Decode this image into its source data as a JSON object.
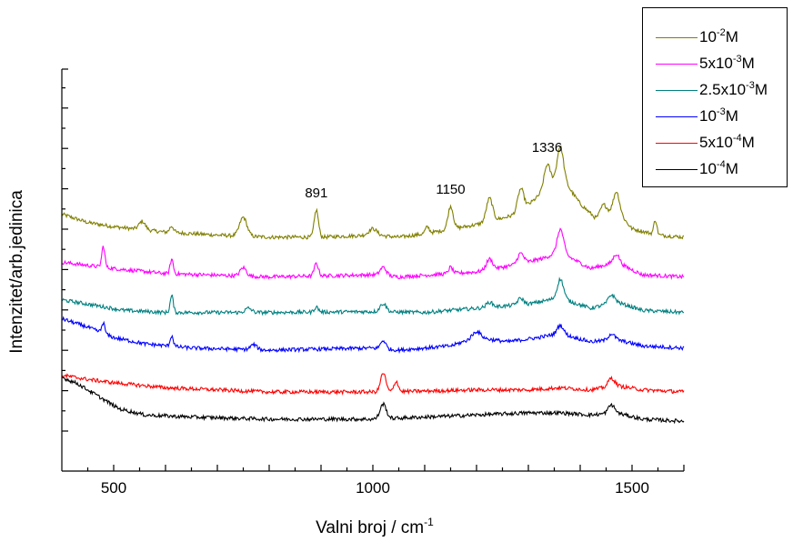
{
  "chart_data": {
    "type": "line",
    "title": "",
    "xlabel": "Valni broj / cm",
    "xlabel_sup": "-1",
    "ylabel": "Intenzitet/arb.jedinica",
    "xlim": [
      400,
      1600
    ],
    "xticks": [
      500,
      1000,
      1500
    ],
    "xtick_labels": [
      "500",
      "1000",
      "1500"
    ],
    "y_ticks_labeled": false,
    "legend_position": "top-right",
    "annotations": [
      {
        "text": "891",
        "x": 891,
        "series": "10^-2M"
      },
      {
        "text": "1150",
        "x": 1150,
        "series": "10^-2M"
      },
      {
        "text": "1336",
        "x": 1336,
        "series": "10^-2M"
      }
    ],
    "series": [
      {
        "name": "10^-2M",
        "base": "10",
        "exp": "-2",
        "unit": "M",
        "color": "#808000",
        "offset": 5.2,
        "baseline": [
          [
            400,
            0.55
          ],
          [
            450,
            0.35
          ],
          [
            500,
            0.25
          ],
          [
            600,
            0.12
          ],
          [
            700,
            0.05
          ],
          [
            800,
            0.0
          ],
          [
            900,
            0.0
          ],
          [
            1000,
            0.05
          ],
          [
            1050,
            0.0
          ],
          [
            1100,
            0.08
          ],
          [
            1200,
            0.3
          ],
          [
            1280,
            0.55
          ],
          [
            1330,
            1.1
          ],
          [
            1360,
            1.5
          ],
          [
            1400,
            0.8
          ],
          [
            1430,
            0.45
          ],
          [
            1470,
            0.65
          ],
          [
            1500,
            0.2
          ],
          [
            1550,
            0.05
          ],
          [
            1600,
            0.0
          ]
        ],
        "peaks": [
          [
            555,
            0.2,
            6
          ],
          [
            612,
            0.15,
            4
          ],
          [
            750,
            0.45,
            7
          ],
          [
            891,
            0.65,
            4
          ],
          [
            1000,
            0.15,
            8
          ],
          [
            1105,
            0.15,
            4
          ],
          [
            1150,
            0.55,
            5
          ],
          [
            1225,
            0.55,
            6
          ],
          [
            1285,
            0.55,
            6
          ],
          [
            1336,
            0.55,
            6
          ],
          [
            1362,
            0.7,
            6
          ],
          [
            1445,
            0.25,
            6
          ],
          [
            1470,
            0.45,
            6
          ],
          [
            1545,
            0.35,
            3
          ]
        ]
      },
      {
        "name": "5x10^-3M",
        "base": "5x10",
        "exp": "-3",
        "unit": "M",
        "color": "#FF00FF",
        "offset": 4.25,
        "baseline": [
          [
            400,
            0.35
          ],
          [
            500,
            0.2
          ],
          [
            600,
            0.08
          ],
          [
            800,
            0.0
          ],
          [
            1000,
            0.05
          ],
          [
            1050,
            0.0
          ],
          [
            1200,
            0.12
          ],
          [
            1280,
            0.3
          ],
          [
            1330,
            0.45
          ],
          [
            1360,
            0.6
          ],
          [
            1420,
            0.2
          ],
          [
            1470,
            0.35
          ],
          [
            1520,
            0.05
          ],
          [
            1600,
            0.0
          ]
        ],
        "peaks": [
          [
            480,
            0.5,
            3
          ],
          [
            612,
            0.35,
            3
          ],
          [
            750,
            0.2,
            6
          ],
          [
            891,
            0.3,
            4
          ],
          [
            1020,
            0.2,
            6
          ],
          [
            1150,
            0.15,
            4
          ],
          [
            1225,
            0.25,
            6
          ],
          [
            1285,
            0.25,
            6
          ],
          [
            1362,
            0.55,
            6
          ],
          [
            1470,
            0.2,
            6
          ]
        ]
      },
      {
        "name": "2.5x10^-3M",
        "base": "2.5x10",
        "exp": "-3",
        "unit": "M",
        "color": "#008080",
        "offset": 3.4,
        "baseline": [
          [
            400,
            0.3
          ],
          [
            450,
            0.2
          ],
          [
            520,
            0.05
          ],
          [
            600,
            0.0
          ],
          [
            800,
            0.0
          ],
          [
            1000,
            0.02
          ],
          [
            1100,
            0.0
          ],
          [
            1200,
            0.1
          ],
          [
            1300,
            0.2
          ],
          [
            1360,
            0.35
          ],
          [
            1420,
            0.1
          ],
          [
            1470,
            0.25
          ],
          [
            1520,
            0.05
          ],
          [
            1600,
            0.0
          ]
        ],
        "peaks": [
          [
            612,
            0.4,
            3
          ],
          [
            760,
            0.1,
            6
          ],
          [
            891,
            0.12,
            4
          ],
          [
            1020,
            0.2,
            6
          ],
          [
            1225,
            0.12,
            6
          ],
          [
            1285,
            0.15,
            6
          ],
          [
            1362,
            0.45,
            6
          ],
          [
            1460,
            0.2,
            6
          ]
        ]
      },
      {
        "name": "10^-3M",
        "base": "10",
        "exp": "-3",
        "unit": "M",
        "color": "#0000FF",
        "offset": 2.5,
        "baseline": [
          [
            400,
            0.75
          ],
          [
            450,
            0.55
          ],
          [
            500,
            0.3
          ],
          [
            560,
            0.15
          ],
          [
            650,
            0.05
          ],
          [
            800,
            0.0
          ],
          [
            1000,
            0.05
          ],
          [
            1050,
            0.0
          ],
          [
            1150,
            0.1
          ],
          [
            1200,
            0.3
          ],
          [
            1260,
            0.2
          ],
          [
            1320,
            0.3
          ],
          [
            1360,
            0.4
          ],
          [
            1420,
            0.2
          ],
          [
            1470,
            0.25
          ],
          [
            1520,
            0.1
          ],
          [
            1600,
            0.05
          ]
        ],
        "peaks": [
          [
            480,
            0.25,
            3
          ],
          [
            612,
            0.25,
            3
          ],
          [
            770,
            0.12,
            6
          ],
          [
            1020,
            0.2,
            5
          ],
          [
            1200,
            0.15,
            8
          ],
          [
            1362,
            0.2,
            6
          ],
          [
            1460,
            0.15,
            6
          ]
        ]
      },
      {
        "name": "5x10^-4M",
        "base": "5x10",
        "exp": "-4",
        "unit": "M",
        "color": "#FF0000",
        "offset": 1.5,
        "baseline": [
          [
            400,
            0.4
          ],
          [
            450,
            0.3
          ],
          [
            500,
            0.22
          ],
          [
            600,
            0.1
          ],
          [
            700,
            0.05
          ],
          [
            800,
            0.0
          ],
          [
            1000,
            0.0
          ],
          [
            1100,
            0.02
          ],
          [
            1200,
            0.05
          ],
          [
            1300,
            0.05
          ],
          [
            1360,
            0.1
          ],
          [
            1420,
            0.05
          ],
          [
            1470,
            0.15
          ],
          [
            1520,
            0.05
          ],
          [
            1600,
            0.0
          ]
        ],
        "peaks": [
          [
            1020,
            0.45,
            5
          ],
          [
            1045,
            0.25,
            4
          ],
          [
            1460,
            0.2,
            6
          ]
        ]
      },
      {
        "name": "10^-4M",
        "base": "10",
        "exp": "-4",
        "unit": "M",
        "color": "#000000",
        "offset": 0.8,
        "baseline": [
          [
            400,
            1.05
          ],
          [
            430,
            0.9
          ],
          [
            470,
            0.6
          ],
          [
            510,
            0.3
          ],
          [
            560,
            0.15
          ],
          [
            650,
            0.1
          ],
          [
            800,
            0.05
          ],
          [
            1000,
            0.05
          ],
          [
            1100,
            0.1
          ],
          [
            1200,
            0.15
          ],
          [
            1300,
            0.2
          ],
          [
            1360,
            0.2
          ],
          [
            1420,
            0.15
          ],
          [
            1470,
            0.2
          ],
          [
            1520,
            0.05
          ],
          [
            1600,
            0.0
          ]
        ],
        "peaks": [
          [
            1020,
            0.35,
            6
          ],
          [
            1460,
            0.2,
            6
          ]
        ]
      }
    ]
  }
}
